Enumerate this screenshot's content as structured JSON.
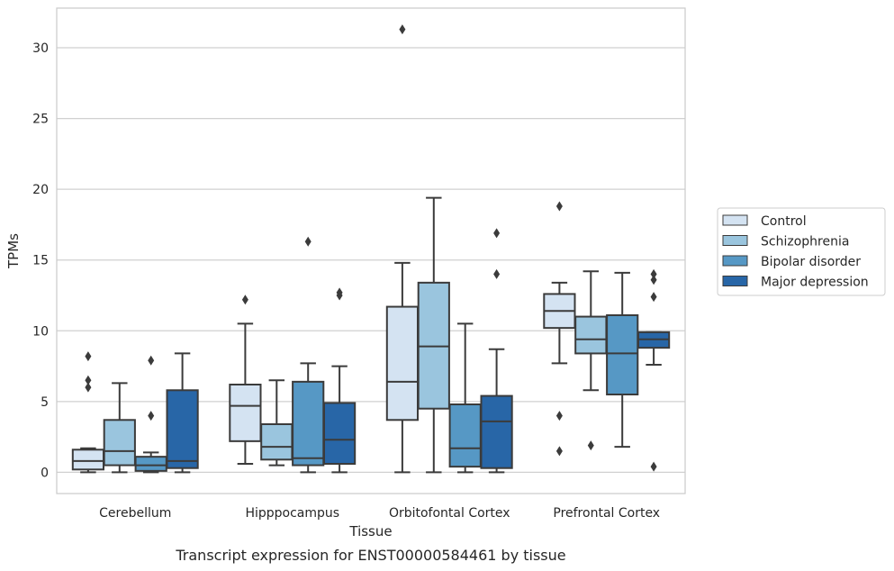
{
  "chart_data": {
    "type": "boxplot",
    "title": "",
    "caption": "Transcript expression for ENST00000584461 by tissue",
    "xlabel": "Tissue",
    "ylabel": "TPMs",
    "ylim": [
      -1.5,
      32.8
    ],
    "yticks": [
      0,
      5,
      10,
      15,
      20,
      25,
      30
    ],
    "grid": "horizontal",
    "legend_position": "right",
    "categories": [
      "Cerebellum",
      "Hipppocampus",
      "Orbitofontal Cortex",
      "Prefrontal Cortex"
    ],
    "series": [
      {
        "name": "Control",
        "color": "#d4e3f2",
        "boxes": [
          {
            "whisker_low": 0.0,
            "q1": 0.2,
            "median": 0.8,
            "q3": 1.6,
            "whisker_high": 1.7,
            "outliers": [
              8.2,
              6.5,
              6.0
            ]
          },
          {
            "whisker_low": 0.6,
            "q1": 2.2,
            "median": 4.7,
            "q3": 6.2,
            "whisker_high": 10.5,
            "outliers": [
              12.2
            ]
          },
          {
            "whisker_low": 0.0,
            "q1": 3.7,
            "median": 6.4,
            "q3": 11.7,
            "whisker_high": 14.8,
            "outliers": [
              31.3
            ]
          },
          {
            "whisker_low": 7.7,
            "q1": 10.2,
            "median": 11.4,
            "q3": 12.6,
            "whisker_high": 13.4,
            "outliers": [
              18.8,
              4.0,
              1.5
            ]
          }
        ]
      },
      {
        "name": "Schizophrenia",
        "color": "#9ac5de",
        "boxes": [
          {
            "whisker_low": 0.0,
            "q1": 0.5,
            "median": 1.5,
            "q3": 3.7,
            "whisker_high": 6.3,
            "outliers": []
          },
          {
            "whisker_low": 0.5,
            "q1": 0.9,
            "median": 1.8,
            "q3": 3.4,
            "whisker_high": 6.5,
            "outliers": []
          },
          {
            "whisker_low": 0.0,
            "q1": 4.5,
            "median": 8.9,
            "q3": 13.4,
            "whisker_high": 19.4,
            "outliers": []
          },
          {
            "whisker_low": 5.8,
            "q1": 8.4,
            "median": 9.4,
            "q3": 11.0,
            "whisker_high": 14.2,
            "outliers": [
              1.9
            ]
          }
        ]
      },
      {
        "name": "Bipolar disorder",
        "color": "#5698c5",
        "boxes": [
          {
            "whisker_low": 0.0,
            "q1": 0.1,
            "median": 0.5,
            "q3": 1.1,
            "whisker_high": 1.4,
            "outliers": [
              7.9,
              4.0
            ]
          },
          {
            "whisker_low": 0.0,
            "q1": 0.5,
            "median": 1.0,
            "q3": 6.4,
            "whisker_high": 7.7,
            "outliers": [
              16.3
            ]
          },
          {
            "whisker_low": 0.0,
            "q1": 0.4,
            "median": 1.7,
            "q3": 4.8,
            "whisker_high": 10.5,
            "outliers": []
          },
          {
            "whisker_low": 1.8,
            "q1": 5.5,
            "median": 8.4,
            "q3": 11.1,
            "whisker_high": 14.1,
            "outliers": []
          }
        ]
      },
      {
        "name": "Major depression",
        "color": "#2866a7",
        "boxes": [
          {
            "whisker_low": 0.0,
            "q1": 0.3,
            "median": 0.8,
            "q3": 5.8,
            "whisker_high": 8.4,
            "outliers": []
          },
          {
            "whisker_low": 0.0,
            "q1": 0.6,
            "median": 2.3,
            "q3": 4.9,
            "whisker_high": 7.5,
            "outliers": [
              12.7,
              12.5
            ]
          },
          {
            "whisker_low": 0.0,
            "q1": 0.3,
            "median": 3.6,
            "q3": 5.4,
            "whisker_high": 8.7,
            "outliers": [
              16.9,
              14.0
            ]
          },
          {
            "whisker_low": 7.6,
            "q1": 8.8,
            "median": 9.4,
            "q3": 9.9,
            "whisker_high": 9.9,
            "outliers": [
              14.0,
              13.6,
              12.4,
              0.4
            ]
          }
        ]
      }
    ]
  }
}
